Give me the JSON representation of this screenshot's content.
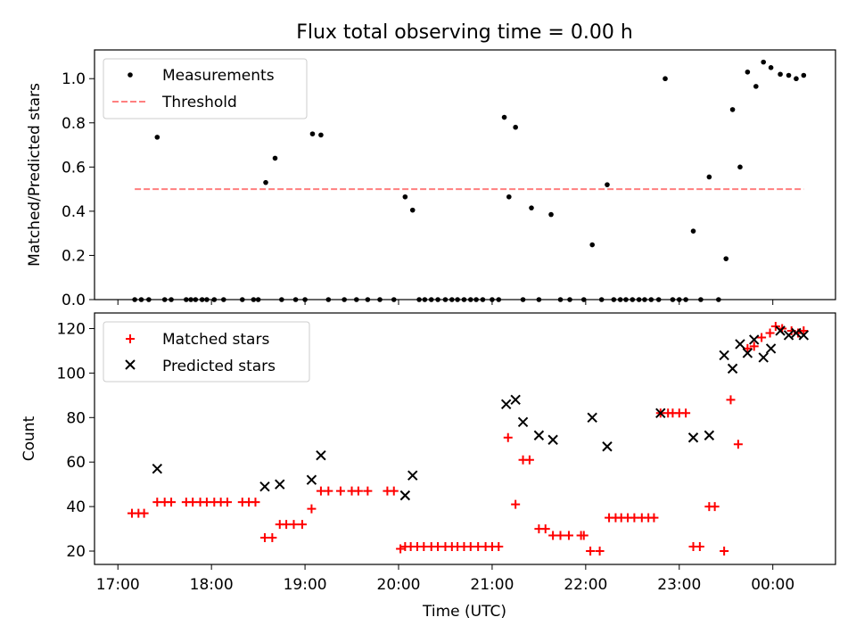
{
  "chart_data": [
    {
      "type": "scatter",
      "title": "Flux total observing time = 0.00 h",
      "xlabel": "",
      "ylabel": "Matched/Predicted stars",
      "ylim": [
        0,
        1.13
      ],
      "yticks": [
        "0.0",
        "0.2",
        "0.4",
        "0.6",
        "0.8",
        "1.0"
      ],
      "xlim_hours": [
        16.75,
        24.67
      ],
      "legend_position": "top-left",
      "series": [
        {
          "name": "Measurements",
          "marker": "dot",
          "color": "#000000",
          "x": [
            17.18,
            17.25,
            17.33,
            17.42,
            17.5,
            17.57,
            17.73,
            17.78,
            17.83,
            17.9,
            17.95,
            18.03,
            18.13,
            18.33,
            18.45,
            18.5,
            18.58,
            18.68,
            18.75,
            18.9,
            19.0,
            19.08,
            19.17,
            19.25,
            19.42,
            19.55,
            19.67,
            19.8,
            19.95,
            20.07,
            20.15,
            20.22,
            20.28,
            20.35,
            20.42,
            20.5,
            20.57,
            20.63,
            20.7,
            20.77,
            20.83,
            20.9,
            21.0,
            21.07,
            21.13,
            21.18,
            21.25,
            21.33,
            21.42,
            21.5,
            21.63,
            21.73,
            21.83,
            21.98,
            22.07,
            22.17,
            22.23,
            22.3,
            22.37,
            22.43,
            22.5,
            22.57,
            22.63,
            22.7,
            22.78,
            22.85,
            22.93,
            23.0,
            23.07,
            23.15,
            23.23,
            23.32,
            23.42,
            23.5,
            23.57,
            23.65,
            23.73,
            23.82,
            23.9,
            23.98,
            24.08,
            24.17,
            24.25,
            24.33
          ],
          "y": [
            0,
            0,
            0,
            0.735,
            0,
            0,
            0,
            0,
            0,
            0,
            0,
            0,
            0,
            0,
            0,
            0,
            0.53,
            0.64,
            0,
            0,
            0,
            0.75,
            0.745,
            0,
            0,
            0,
            0,
            0,
            0,
            0.465,
            0.405,
            0,
            0,
            0,
            0,
            0,
            0,
            0,
            0,
            0,
            0,
            0,
            0,
            0,
            0.825,
            0.465,
            0.78,
            0,
            0.415,
            0,
            0.385,
            0,
            0,
            0,
            0.248,
            0,
            0.52,
            0,
            0,
            0,
            0,
            0,
            0,
            0,
            0,
            1.0,
            0,
            0,
            0,
            0.31,
            0,
            0.555,
            0,
            0.185,
            0.86,
            0.6,
            1.03,
            0.965,
            1.075,
            1.05,
            1.02,
            1.015,
            1.0,
            1.015
          ]
        },
        {
          "name": "Threshold",
          "style": "dashed",
          "color": "#ff7f7f",
          "x": [
            17.18,
            24.33
          ],
          "y": [
            0.5,
            0.5
          ]
        }
      ]
    },
    {
      "type": "scatter",
      "title": "",
      "xlabel": "Time (UTC)",
      "ylabel": "Count",
      "ylim": [
        14,
        127
      ],
      "yticks": [
        "20",
        "40",
        "60",
        "80",
        "100",
        "120"
      ],
      "xticks": [
        "17:00",
        "18:00",
        "19:00",
        "20:00",
        "21:00",
        "22:00",
        "23:00",
        "00:00"
      ],
      "xtick_hours": [
        17,
        18,
        19,
        20,
        21,
        22,
        23,
        24
      ],
      "xlim_hours": [
        16.75,
        24.67
      ],
      "legend_position": "top-left",
      "series": [
        {
          "name": "Matched stars",
          "marker": "plus",
          "color": "#ff0000",
          "x": [
            17.15,
            17.22,
            17.28,
            17.42,
            17.5,
            17.57,
            17.73,
            17.8,
            17.88,
            17.95,
            18.03,
            18.1,
            18.17,
            18.33,
            18.4,
            18.47,
            18.57,
            18.65,
            18.73,
            18.8,
            18.88,
            18.97,
            19.07,
            19.17,
            19.25,
            19.38,
            19.5,
            19.57,
            19.67,
            19.88,
            19.95,
            20.02,
            20.07,
            20.13,
            20.2,
            20.27,
            20.35,
            20.42,
            20.5,
            20.57,
            20.63,
            20.7,
            20.77,
            20.85,
            20.93,
            21.0,
            21.07,
            21.17,
            21.25,
            21.33,
            21.4,
            21.5,
            21.57,
            21.65,
            21.73,
            21.82,
            21.95,
            21.98,
            22.05,
            22.15,
            22.25,
            22.32,
            22.38,
            22.45,
            22.52,
            22.6,
            22.67,
            22.73,
            22.8,
            22.88,
            22.93,
            23.0,
            23.07,
            23.15,
            23.22,
            23.32,
            23.38,
            23.48,
            23.55,
            23.63,
            23.73,
            23.8,
            23.88,
            23.97,
            24.03,
            24.1,
            24.2,
            24.27,
            24.33
          ],
          "y": [
            37,
            37,
            37,
            42,
            42,
            42,
            42,
            42,
            42,
            42,
            42,
            42,
            42,
            42,
            42,
            42,
            26,
            26,
            32,
            32,
            32,
            32,
            39,
            47,
            47,
            47,
            47,
            47,
            47,
            47,
            47,
            21,
            22,
            22,
            22,
            22,
            22,
            22,
            22,
            22,
            22,
            22,
            22,
            22,
            22,
            22,
            22,
            71,
            41,
            61,
            61,
            30,
            30,
            27,
            27,
            27,
            27,
            27,
            20,
            20,
            35,
            35,
            35,
            35,
            35,
            35,
            35,
            35,
            82,
            82,
            82,
            82,
            82,
            22,
            22,
            40,
            40,
            20,
            88,
            68,
            111,
            112,
            116,
            118,
            121,
            120,
            119,
            118,
            119
          ]
        },
        {
          "name": "Predicted stars",
          "marker": "x",
          "color": "#000000",
          "x": [
            17.42,
            18.57,
            18.73,
            19.07,
            19.17,
            20.07,
            20.15,
            21.15,
            21.25,
            21.33,
            21.5,
            21.65,
            22.07,
            22.23,
            22.8,
            23.15,
            23.32,
            23.48,
            23.57,
            23.65,
            23.73,
            23.8,
            23.9,
            23.98,
            24.08,
            24.17,
            24.25,
            24.33
          ],
          "y": [
            57,
            49,
            50,
            52,
            63,
            45,
            54,
            86,
            88,
            78,
            72,
            70,
            80,
            67,
            82,
            71,
            72,
            108,
            102,
            113,
            109,
            115,
            107,
            111,
            119,
            117,
            118,
            117
          ]
        }
      ]
    }
  ]
}
